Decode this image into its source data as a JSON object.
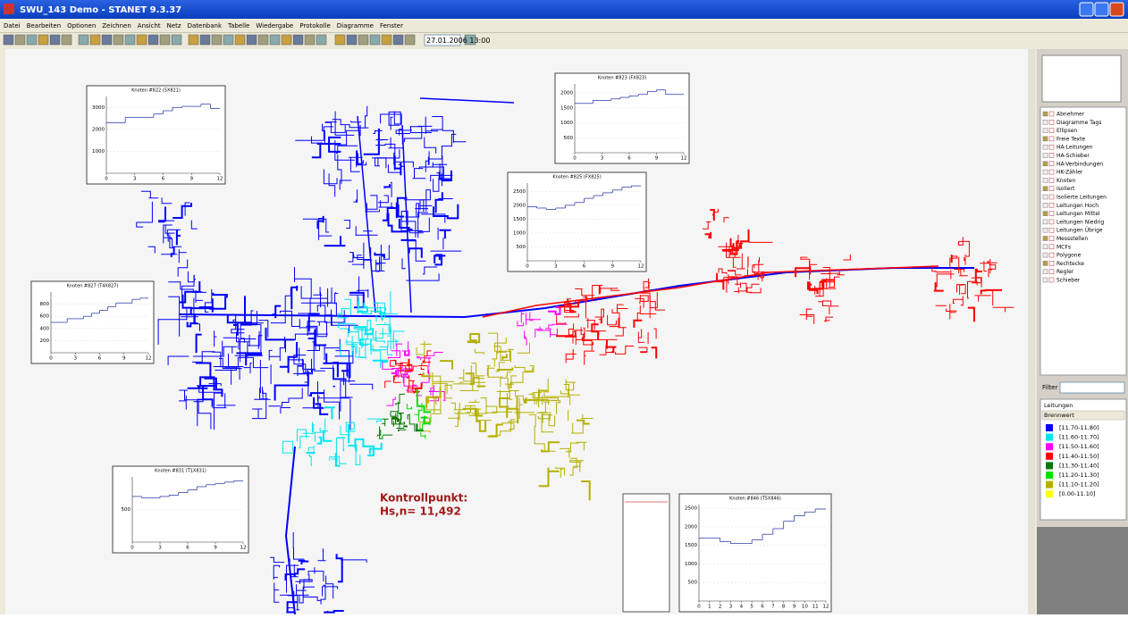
{
  "window": {
    "title": "SWU_143 Demo - STANET 9.3.37"
  },
  "menu": [
    "Datei",
    "Bearbeiten",
    "Optionen",
    "Zeichnen",
    "Ansicht",
    "Netz",
    "Datenbank",
    "Tabelle",
    "Wiedergabe",
    "Protokolle",
    "Diagramme",
    "Fenster"
  ],
  "toolbar": {
    "datetime": "27.01.2006 13:00"
  },
  "annotation": {
    "line1": "Kontrollpunkt:",
    "line2": "Hs,n= 11,492"
  },
  "layers": [
    "Abnehmer",
    "Diagramme Tags",
    "Ellipsen",
    "Freie Texte",
    "HA-Leitungen",
    "HA-Schieber",
    "HA-Verbindungen",
    "HK-Zähler",
    "Knoten",
    "Isoliert",
    "Isolierte Leitungen",
    "Leitungen Hoch",
    "Leitungen Mittel",
    "Leitungen Niedrig",
    "Leitungen Übrige",
    "Messstellen",
    "MCFs",
    "Polygone",
    "Rechtecke",
    "Regler",
    "Schieber"
  ],
  "filter": {
    "label": "Filter"
  },
  "legend": {
    "title": "Leitungen",
    "subtitle": "Brennwert",
    "items": [
      {
        "label": "[11.70-11.80]",
        "color": "#0000ff"
      },
      {
        "label": "[11.60-11.70]",
        "color": "#00e5ee"
      },
      {
        "label": "[11.50-11.60]",
        "color": "#ff00ff"
      },
      {
        "label": "[11.40-11.50]",
        "color": "#ff0000"
      },
      {
        "label": "[11.30-11.40]",
        "color": "#007a00"
      },
      {
        "label": "[11.20-11.30]",
        "color": "#00e000"
      },
      {
        "label": "[11.10-11.20]",
        "color": "#b5b000"
      },
      {
        "label": "[0.00-11.10]",
        "color": "#ffff00"
      }
    ]
  },
  "charts": [
    {
      "title": "Knoten #822 (5X821)",
      "x": [
        0,
        1,
        2,
        3,
        4,
        5,
        6,
        7,
        8,
        9,
        10,
        11
      ],
      "values": [
        2300,
        2300,
        2550,
        2550,
        2550,
        2700,
        2850,
        3000,
        3050,
        3050,
        3150,
        2950
      ],
      "xlim": [
        0,
        12
      ],
      "ylim": [
        0,
        3500
      ],
      "xticks": [
        0,
        3,
        6,
        9,
        12
      ],
      "yticks": [
        1000,
        2000,
        3000
      ]
    },
    {
      "title": "Knoten #823 (FX823)",
      "x": [
        0,
        1,
        2,
        3,
        4,
        5,
        6,
        7,
        8,
        9,
        10,
        11
      ],
      "values": [
        1650,
        1650,
        1750,
        1750,
        1800,
        1850,
        1900,
        1950,
        2050,
        2100,
        1950,
        1950
      ],
      "xlim": [
        0,
        12
      ],
      "ylim": [
        0,
        2300
      ],
      "xticks": [
        0,
        3,
        6,
        9,
        12
      ],
      "yticks": [
        500,
        1000,
        1500,
        2000
      ]
    },
    {
      "title": "Knoten #825 (FX825)",
      "x": [
        0,
        1,
        2,
        3,
        4,
        5,
        6,
        7,
        8,
        9,
        10,
        11
      ],
      "values": [
        1950,
        1900,
        1850,
        1900,
        2000,
        2100,
        2250,
        2350,
        2450,
        2550,
        2650,
        2700
      ],
      "xlim": [
        0,
        12
      ],
      "ylim": [
        0,
        2800
      ],
      "xticks": [
        0,
        3,
        6,
        9,
        12
      ],
      "yticks": [
        500,
        1000,
        1500,
        2000,
        2500
      ]
    },
    {
      "title": "Knoten #827 (T4X827)",
      "x": [
        0,
        1,
        2,
        3,
        4,
        5,
        6,
        7,
        8,
        9,
        10,
        11
      ],
      "values": [
        500,
        500,
        560,
        560,
        600,
        650,
        700,
        760,
        820,
        820,
        880,
        900
      ],
      "xlim": [
        0,
        12
      ],
      "ylim": [
        0,
        1000
      ],
      "xticks": [
        0,
        3,
        6,
        9,
        12
      ],
      "yticks": [
        200,
        400,
        600,
        800
      ]
    },
    {
      "title": "Knoten #831 (T1X831)",
      "x": [
        0,
        1,
        2,
        3,
        4,
        5,
        6,
        7,
        8,
        9,
        10,
        11
      ],
      "values": [
        700,
        680,
        680,
        700,
        720,
        760,
        800,
        850,
        880,
        900,
        920,
        940
      ],
      "xlim": [
        0,
        12
      ],
      "ylim": [
        0,
        1000
      ],
      "xticks": [
        0,
        3,
        6,
        9,
        12
      ],
      "yticks": [
        500
      ]
    },
    {
      "title": "Knoten #846 (T5X846)",
      "x": [
        0,
        1,
        2,
        3,
        4,
        5,
        6,
        7,
        8,
        9,
        10,
        11
      ],
      "values": [
        1700,
        1700,
        1600,
        1550,
        1550,
        1650,
        1800,
        1950,
        2150,
        2300,
        2400,
        2480
      ],
      "xlim": [
        0,
        12
      ],
      "ylim": [
        0,
        2600
      ],
      "xticks": [
        0,
        1,
        2,
        3,
        4,
        5,
        6,
        7,
        8,
        9,
        10,
        11,
        12
      ],
      "yticks": [
        500,
        1000,
        1500,
        2000,
        2500
      ]
    }
  ]
}
